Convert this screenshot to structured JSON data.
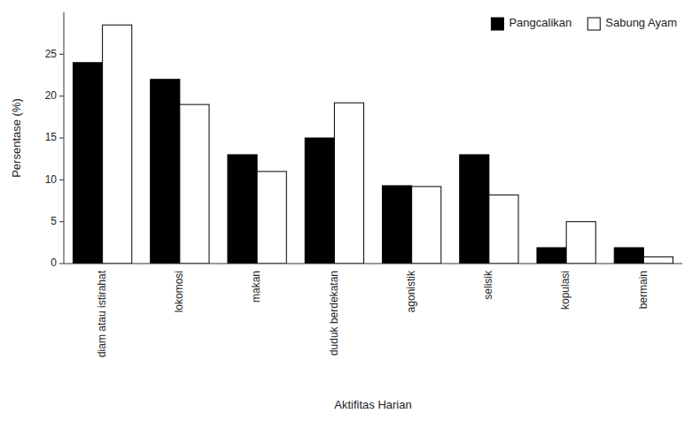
{
  "chart_data": {
    "type": "bar",
    "xlabel": "Aktifitas Harian",
    "ylabel": "Persentase (%)",
    "categories": [
      "diam atau istirahat",
      "lokomosi",
      "makan",
      "duduk berdekatan",
      "agonistik",
      "selisik",
      "kopulasi",
      "bermain"
    ],
    "series": [
      {
        "name": "Pangcalikan",
        "color": "#000000",
        "values": [
          24.0,
          22.0,
          13.0,
          15.0,
          9.3,
          13.0,
          1.9,
          1.9
        ]
      },
      {
        "name": "Sabung Ayam",
        "color": "#ffffff",
        "values": [
          28.5,
          19.0,
          11.0,
          19.2,
          9.2,
          8.2,
          5.0,
          0.8
        ]
      }
    ],
    "ylim": [
      0,
      30
    ],
    "yticks": [
      0,
      5,
      10,
      15,
      20,
      25
    ],
    "grid": false,
    "legend": "upper right"
  }
}
